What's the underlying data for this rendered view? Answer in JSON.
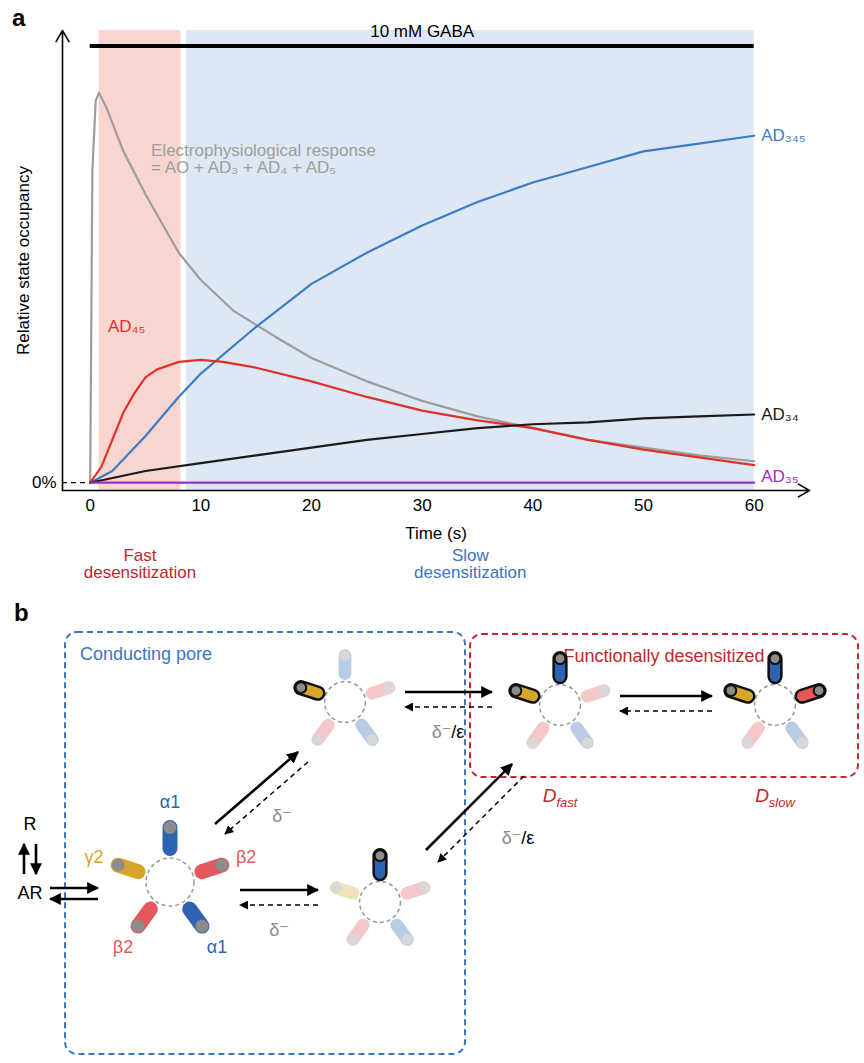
{
  "chart_data": {
    "type": "line",
    "panel": "a",
    "xlabel": "Time (s)",
    "ylabel": "Relative state occupancy",
    "xlim": [
      -2.5,
      65
    ],
    "xticks": [
      0,
      10,
      20,
      30,
      40,
      50,
      60
    ],
    "ylim": [
      -2,
      116
    ],
    "yticks": [
      {
        "value": 0,
        "label": "0%"
      }
    ],
    "stimulus": {
      "label": "10 mM GABA",
      "x": [
        0,
        60
      ],
      "y": 112
    },
    "regions": [
      {
        "label": "Fast\ndesensitization",
        "x": [
          0.8,
          8.2
        ],
        "color": "#f9d5d0",
        "text_color": "#c0282d"
      },
      {
        "label": "Slow\ndesensitization",
        "x": [
          8.7,
          60
        ],
        "color": "#dde8f4",
        "text_color": "#3b76c0"
      }
    ],
    "series": [
      {
        "name": "Electrophysiological response\n= AO + AD₃ + AD₄ + AD₅",
        "color": "#9d9d9d",
        "x": [
          0,
          0.2,
          0.5,
          0.8,
          1.5,
          3,
          5,
          8,
          10,
          13,
          17,
          20,
          25,
          30,
          35,
          40,
          45,
          50,
          55,
          60
        ],
        "values": [
          0,
          80,
          98,
          100,
          96,
          85,
          74,
          59,
          52,
          44,
          37,
          32,
          26,
          21,
          17,
          14,
          11,
          9,
          7,
          5.5
        ]
      },
      {
        "name": "AD₃₄₅",
        "color": "#3b7dc4",
        "x": [
          0,
          2,
          5,
          8,
          10,
          15,
          20,
          25,
          30,
          35,
          40,
          45,
          50,
          55,
          60
        ],
        "values": [
          0,
          3,
          12,
          22,
          28,
          40,
          51,
          59,
          66,
          72,
          77,
          81,
          85,
          87,
          89
        ]
      },
      {
        "name": "AD₄₅",
        "color": "#e0322b",
        "x": [
          0,
          1,
          2,
          3,
          4,
          5,
          6,
          8,
          10,
          12,
          15,
          20,
          25,
          30,
          35,
          40,
          45,
          50,
          55,
          60
        ],
        "values": [
          0,
          4,
          11,
          18,
          23,
          27,
          29,
          31,
          31.5,
          31,
          29.5,
          26,
          22,
          18.5,
          16,
          14,
          11,
          8.5,
          6.5,
          4.5
        ]
      },
      {
        "name": "AD₃₄",
        "color": "#1a1a1a",
        "x": [
          0,
          5,
          10,
          15,
          20,
          25,
          30,
          35,
          40,
          45,
          50,
          55,
          60
        ],
        "values": [
          0,
          3,
          5,
          7,
          9,
          11,
          12.5,
          14,
          15,
          15.5,
          16.5,
          17,
          17.5
        ]
      },
      {
        "name": "AD₃₅",
        "color": "#9b30c8",
        "x": [
          0,
          60
        ],
        "values": [
          0,
          0
        ]
      }
    ]
  },
  "diagram": {
    "panel": "b",
    "groups": [
      {
        "label": "Conducting pore",
        "color": "#3b76c0"
      },
      {
        "label": "Functionally desensitized",
        "color": "#c0282d"
      }
    ],
    "subunits": [
      {
        "label": "α1",
        "color": "#2e63b1"
      },
      {
        "label": "β2",
        "color": "#e5575a"
      },
      {
        "label": "α1",
        "color": "#2e63b1"
      },
      {
        "label": "β2",
        "color": "#e5575a"
      },
      {
        "label": "γ2",
        "color": "#d6a62a"
      }
    ],
    "binding_states": [
      "R",
      "AR"
    ],
    "transition_labels": [
      "δ⁻",
      "δ⁻",
      "δ⁻/ε",
      "δ⁻/ε"
    ],
    "desensitized_states": [
      {
        "text": "D",
        "sub": "fast"
      },
      {
        "text": "D",
        "sub": "slow"
      }
    ]
  }
}
